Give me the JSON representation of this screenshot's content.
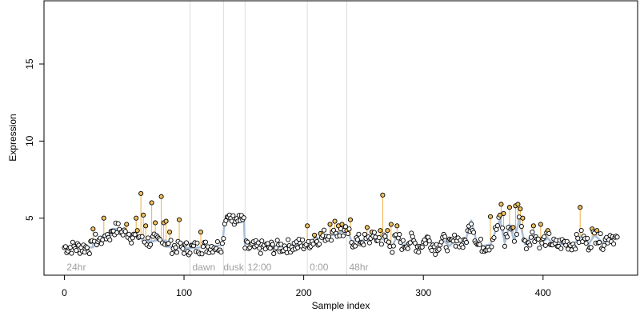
{
  "chart_data": {
    "type": "scatter",
    "title": "",
    "xlabel": "Sample index",
    "ylabel": "Expression",
    "xlim": [
      -17,
      479
    ],
    "ylim": [
      1.3,
      19.1
    ],
    "x_ticks": [
      0,
      100,
      200,
      300,
      400
    ],
    "y_ticks": [
      5,
      10,
      15
    ],
    "grid": false,
    "legend": "none",
    "colors": {
      "points_fill": "#ffffff",
      "points_stroke": "#000000",
      "outlier_fill": "#f0c060",
      "stem": "#f0b040",
      "fit_line": "#a9bfd8",
      "divider": "#dcdcdc",
      "region_text": "#a0a0a0"
    },
    "dividers": [
      105,
      133,
      151,
      203,
      236
    ],
    "regions": [
      {
        "label": "24hr",
        "x": 2
      },
      {
        "label": "dawn",
        "x": 107
      },
      {
        "label": "dusk",
        "x": 133
      },
      {
        "label": "12:00",
        "x": 153
      },
      {
        "label": "0:00",
        "x": 205
      },
      {
        "label": "48hr",
        "x": 238
      }
    ],
    "fit": [
      [
        0,
        3.1
      ],
      [
        10,
        3.1
      ],
      [
        24,
        3.1
      ],
      [
        24,
        3.55
      ],
      [
        32,
        3.55
      ],
      [
        32,
        3.9
      ],
      [
        40,
        3.9
      ],
      [
        40,
        4.3
      ],
      [
        48,
        4.3
      ],
      [
        48,
        4.0
      ],
      [
        56,
        4.0
      ],
      [
        56,
        3.8
      ],
      [
        65,
        3.8
      ],
      [
        65,
        3.5
      ],
      [
        75,
        3.5
      ],
      [
        75,
        3.55
      ],
      [
        85,
        3.55
      ],
      [
        85,
        3.15
      ],
      [
        95,
        3.15
      ],
      [
        95,
        3.05
      ],
      [
        105,
        3.05
      ],
      [
        120,
        3.15
      ],
      [
        132,
        3.25
      ],
      [
        134,
        4.85
      ],
      [
        150,
        4.85
      ],
      [
        151,
        3.1
      ],
      [
        175,
        3.1
      ],
      [
        200,
        3.3
      ],
      [
        210,
        3.6
      ],
      [
        218,
        3.9
      ],
      [
        225,
        3.9
      ],
      [
        230,
        4.1
      ],
      [
        237,
        4.1
      ],
      [
        240,
        3.5
      ],
      [
        255,
        3.6
      ],
      [
        262,
        3.7
      ],
      [
        268,
        3.6
      ],
      [
        274,
        3.1
      ],
      [
        278,
        3.9
      ],
      [
        283,
        3.2
      ],
      [
        290,
        3.6
      ],
      [
        296,
        3.1
      ],
      [
        303,
        3.7
      ],
      [
        310,
        3.1
      ],
      [
        316,
        3.6
      ],
      [
        322,
        3.2
      ],
      [
        328,
        3.7
      ],
      [
        334,
        3.2
      ],
      [
        340,
        4.85
      ],
      [
        345,
        3.3
      ],
      [
        350,
        3.2
      ],
      [
        356,
        3.3
      ],
      [
        364,
        4.9
      ],
      [
        368,
        3.4
      ],
      [
        372,
        4.6
      ],
      [
        376,
        3.5
      ],
      [
        380,
        4.9
      ],
      [
        385,
        3.3
      ],
      [
        392,
        4.0
      ],
      [
        398,
        3.4
      ],
      [
        404,
        3.7
      ],
      [
        410,
        3.2
      ],
      [
        418,
        3.4
      ],
      [
        425,
        3.3
      ],
      [
        432,
        3.8
      ],
      [
        438,
        3.3
      ],
      [
        443,
        3.9
      ],
      [
        450,
        3.4
      ],
      [
        456,
        3.9
      ],
      [
        462,
        3.6
      ]
    ],
    "outliers": [
      [
        24,
        4.3
      ],
      [
        33,
        5.0
      ],
      [
        52,
        4.6
      ],
      [
        60,
        5.0
      ],
      [
        61,
        4.2
      ],
      [
        64,
        6.6
      ],
      [
        66,
        5.2
      ],
      [
        68,
        4.5
      ],
      [
        73,
        6.0
      ],
      [
        76,
        4.7
      ],
      [
        81,
        6.4
      ],
      [
        83,
        4.7
      ],
      [
        85,
        4.8
      ],
      [
        88,
        4.1
      ],
      [
        96,
        4.9
      ],
      [
        114,
        4.1
      ],
      [
        203,
        4.5
      ],
      [
        209,
        3.9
      ],
      [
        214,
        4.0
      ],
      [
        222,
        4.6
      ],
      [
        226,
        4.8
      ],
      [
        229,
        4.5
      ],
      [
        232,
        4.6
      ],
      [
        236,
        4.2
      ],
      [
        239,
        4.9
      ],
      [
        253,
        4.4
      ],
      [
        257,
        4.1
      ],
      [
        264,
        4.2
      ],
      [
        266,
        6.5
      ],
      [
        270,
        4.2
      ],
      [
        273,
        4.6
      ],
      [
        278,
        4.5
      ],
      [
        356,
        5.1
      ],
      [
        364,
        5.2
      ],
      [
        365,
        5.9
      ],
      [
        367,
        5.3
      ],
      [
        372,
        5.7
      ],
      [
        375,
        4.4
      ],
      [
        377,
        5.8
      ],
      [
        379,
        5.9
      ],
      [
        381,
        5.6
      ],
      [
        383,
        5.0
      ],
      [
        392,
        4.5
      ],
      [
        398,
        4.6
      ],
      [
        404,
        4.2
      ],
      [
        431,
        5.7
      ],
      [
        441,
        4.3
      ],
      [
        445,
        4.2
      ]
    ]
  }
}
